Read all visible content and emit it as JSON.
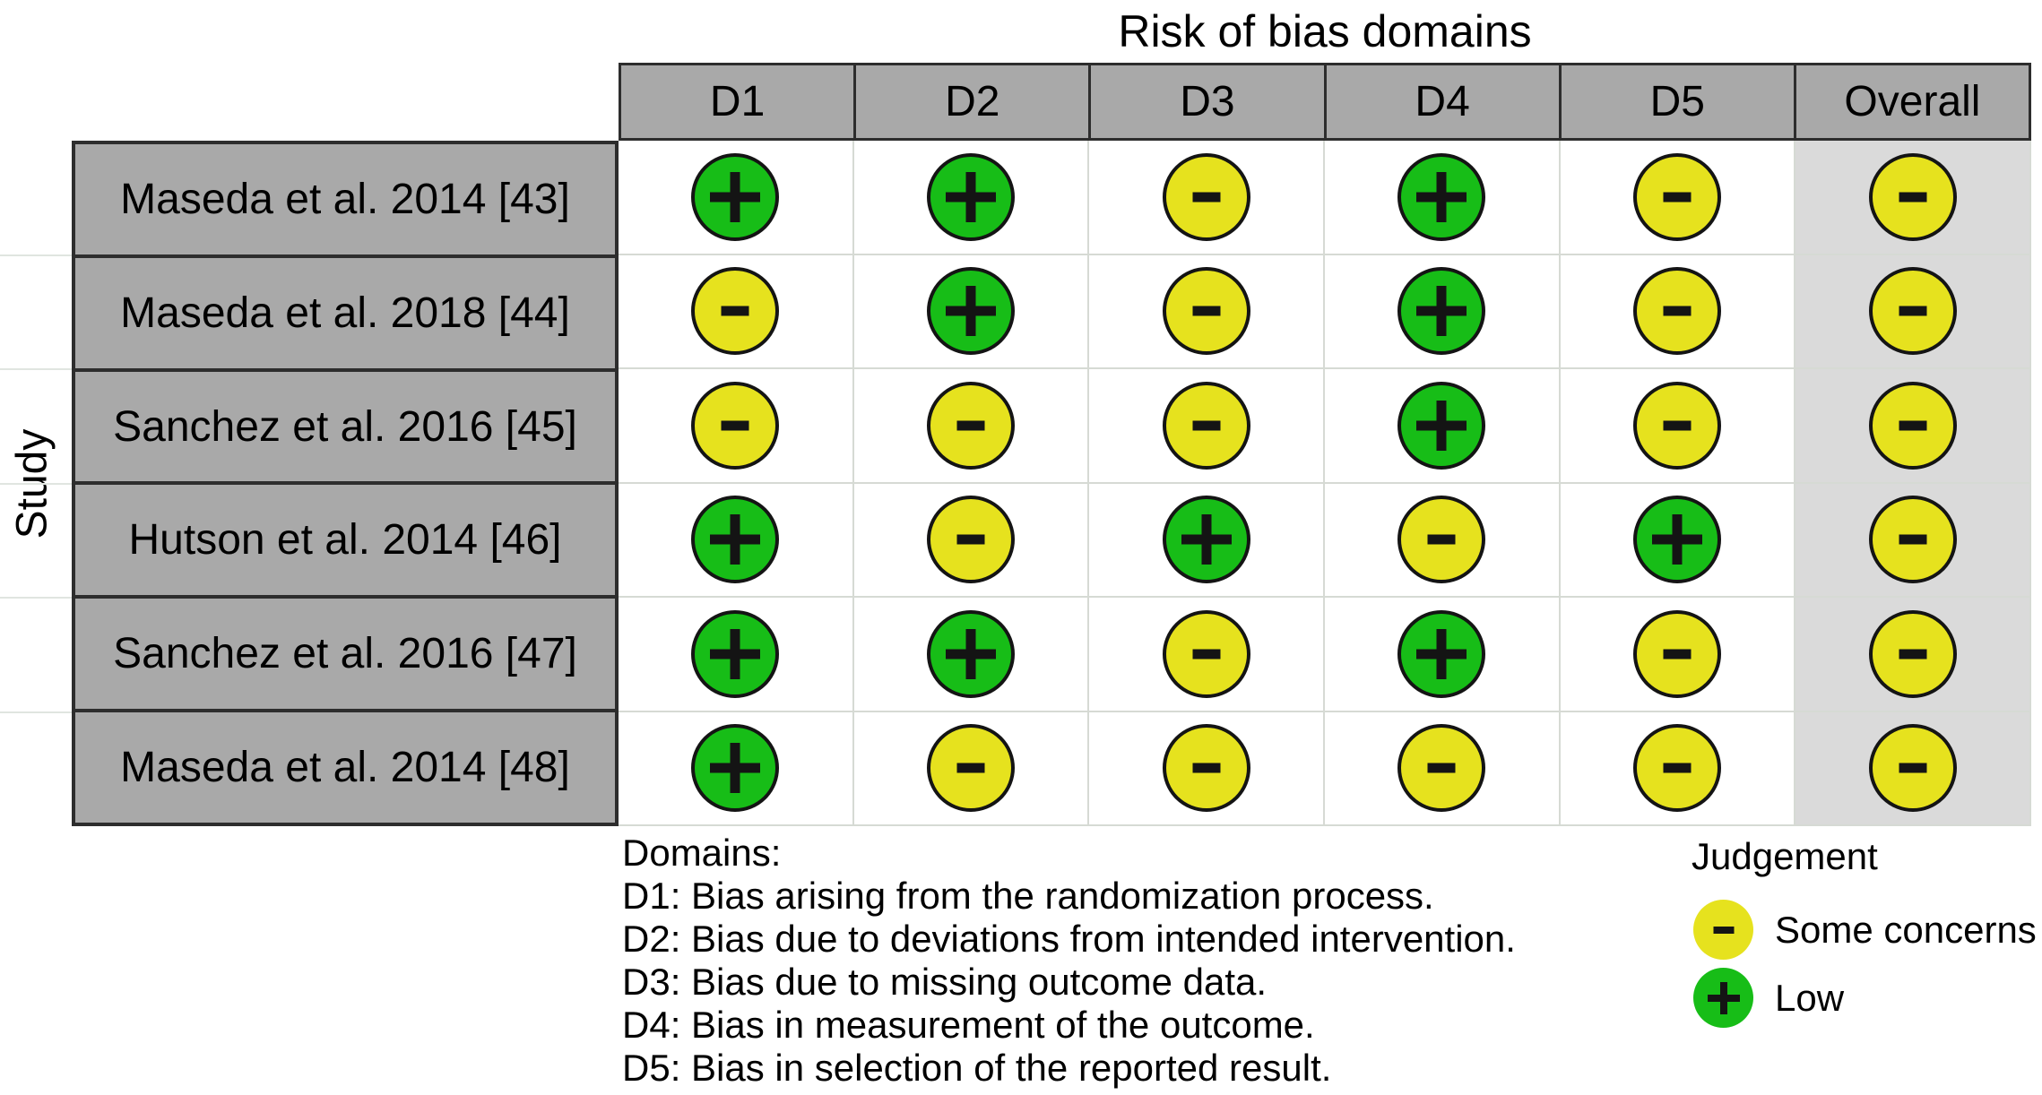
{
  "chart_data": {
    "type": "table",
    "subtype": "risk-of-bias-traffic-light",
    "title": "Risk of bias domains",
    "row_axis_label": "Study",
    "columns": [
      "D1",
      "D2",
      "D3",
      "D4",
      "D5",
      "Overall"
    ],
    "rows": [
      {
        "study": "Maseda et al. 2014 [43]",
        "judgements": [
          "low",
          "low",
          "some_concerns",
          "low",
          "some_concerns",
          "some_concerns"
        ]
      },
      {
        "study": "Maseda et al. 2018 [44]",
        "judgements": [
          "some_concerns",
          "low",
          "some_concerns",
          "low",
          "some_concerns",
          "some_concerns"
        ]
      },
      {
        "study": "Sanchez et al. 2016 [45]",
        "judgements": [
          "some_concerns",
          "some_concerns",
          "some_concerns",
          "low",
          "some_concerns",
          "some_concerns"
        ]
      },
      {
        "study": "Hutson et al. 2014 [46]",
        "judgements": [
          "low",
          "some_concerns",
          "low",
          "some_concerns",
          "low",
          "some_concerns"
        ]
      },
      {
        "study": "Sanchez et al. 2016 [47]",
        "judgements": [
          "low",
          "low",
          "some_concerns",
          "low",
          "some_concerns",
          "some_concerns"
        ]
      },
      {
        "study": "Maseda et al. 2014 [48]",
        "judgements": [
          "low",
          "some_concerns",
          "some_concerns",
          "some_concerns",
          "some_concerns",
          "some_concerns"
        ]
      }
    ],
    "judgement_symbols": {
      "low": "+",
      "some_concerns": "-"
    },
    "judgement_labels": {
      "low": "Low",
      "some_concerns": "Some concerns"
    },
    "judgement_colors": {
      "low": "#17bd17",
      "some_concerns": "#e6e21e"
    }
  },
  "footnotes": {
    "domains_title": "Domains:",
    "domain_definitions": [
      "D1: Bias arising from the randomization process.",
      "D2: Bias due to deviations from intended intervention.",
      "D3: Bias due to missing outcome data.",
      "D4: Bias in measurement of the outcome.",
      "D5: Bias in selection of the reported result."
    ]
  },
  "legend": {
    "title": "Judgement",
    "items": [
      {
        "judgement": "some_concerns",
        "symbol": "-",
        "label": "Some concerns"
      },
      {
        "judgement": "low",
        "symbol": "+",
        "label": "Low"
      }
    ]
  },
  "colors": {
    "page_bg": "#ffffff",
    "text_color": "#000000",
    "header_cell_bg": "#a9a9a9",
    "study_cell_bg": "#a9a9a9",
    "overall_column_bg": "#dadada",
    "table_border_dark": "#2d2d2d",
    "grid_line": "#d6dad4",
    "circle_outline": "#141414",
    "symbol_color": "#141414"
  }
}
